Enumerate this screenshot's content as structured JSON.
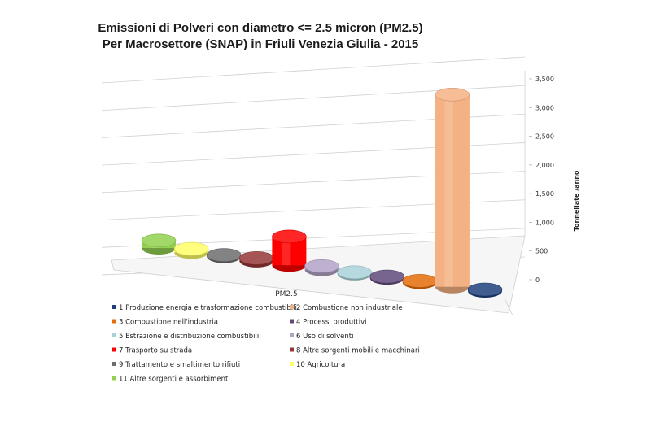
{
  "chart_data": {
    "type": "bar",
    "title_lines": [
      "Emissioni di  Polveri con diametro <= 2.5 micron (PM2.5)",
      "Per Macrosettore (SNAP) in Friuli Venezia Giulia - 2015"
    ],
    "xlabel": "",
    "ylabel": "Tonnellate /anno",
    "category": "PM2.5",
    "ylim": [
      0,
      3500
    ],
    "yticks": [
      "0",
      "500",
      "1,000",
      "1,500",
      "2,000",
      "2,500",
      "3,000",
      "3,500"
    ],
    "ytick_values": [
      0,
      500,
      1000,
      1500,
      2000,
      2500,
      3000,
      3500
    ],
    "grid": true,
    "legend_position": "bottom",
    "series": [
      {
        "name": "1 Produzione energia e trasformazione combustibili",
        "value": 5,
        "color": "#1f3f7a"
      },
      {
        "name": "2 Combustione non industriale",
        "value": 3350,
        "color": "#f4b183"
      },
      {
        "name": "3 Combustione nell'industria",
        "value": 10,
        "color": "#e46c0a"
      },
      {
        "name": "4 Processi produttivi",
        "value": 20,
        "color": "#604a7b"
      },
      {
        "name": "5 Estrazione e distribuzione combustibili",
        "value": 1,
        "color": "#a8d2d8"
      },
      {
        "name": "6 Uso di solventi",
        "value": 60,
        "color": "#b3a2c7"
      },
      {
        "name": "7 Trasporto su strada",
        "value": 500,
        "color": "#ff0000"
      },
      {
        "name": "8 Altre sorgenti mobili e macchinari",
        "value": 50,
        "color": "#953735"
      },
      {
        "name": "9 Trattamento e smaltimento rifiuti",
        "value": 15,
        "color": "#6d6d6d"
      },
      {
        "name": "10 Agricoltura",
        "value": 60,
        "color": "#ffff66"
      },
      {
        "name": "11 Altre sorgenti e assorbimenti",
        "value": 130,
        "color": "#92d050"
      }
    ]
  }
}
